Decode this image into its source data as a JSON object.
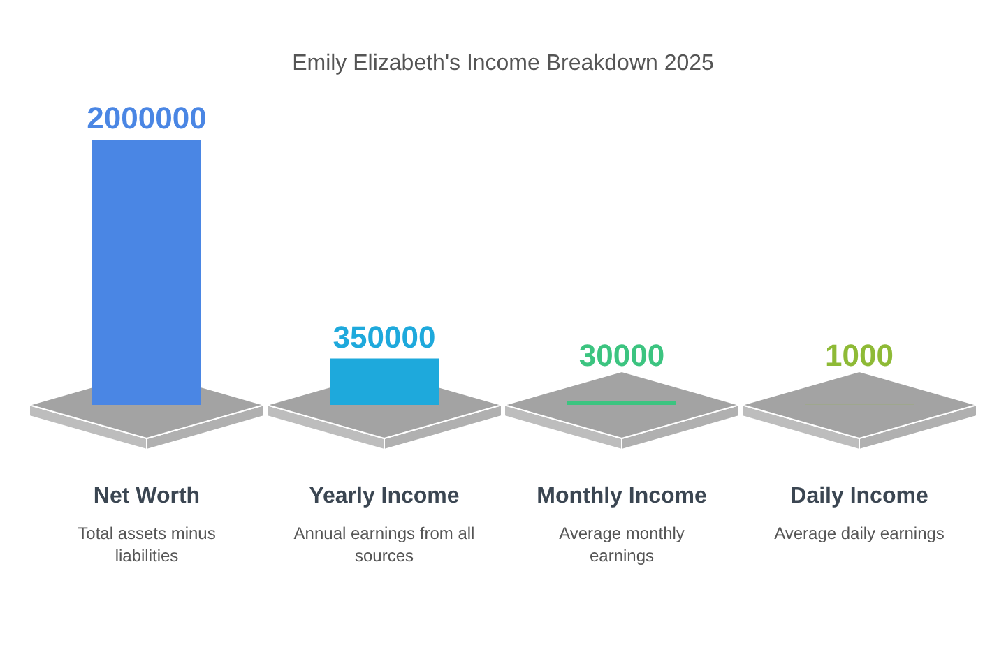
{
  "chart_data": {
    "type": "bar",
    "title": "Emily Elizabeth's Income Breakdown 2025",
    "categories": [
      "Net Worth",
      "Yearly Income",
      "Monthly Income",
      "Daily Income"
    ],
    "values": [
      2000000,
      350000,
      30000,
      1000
    ],
    "colors": [
      "#4a86e4",
      "#1ea9dc",
      "#3cc480",
      "#8eba36"
    ],
    "data_labels": true,
    "annotations": [
      "Total assets minus liabilities",
      "Annual earnings from all sources",
      "Average monthly earnings",
      "Average daily earnings"
    ]
  }
}
